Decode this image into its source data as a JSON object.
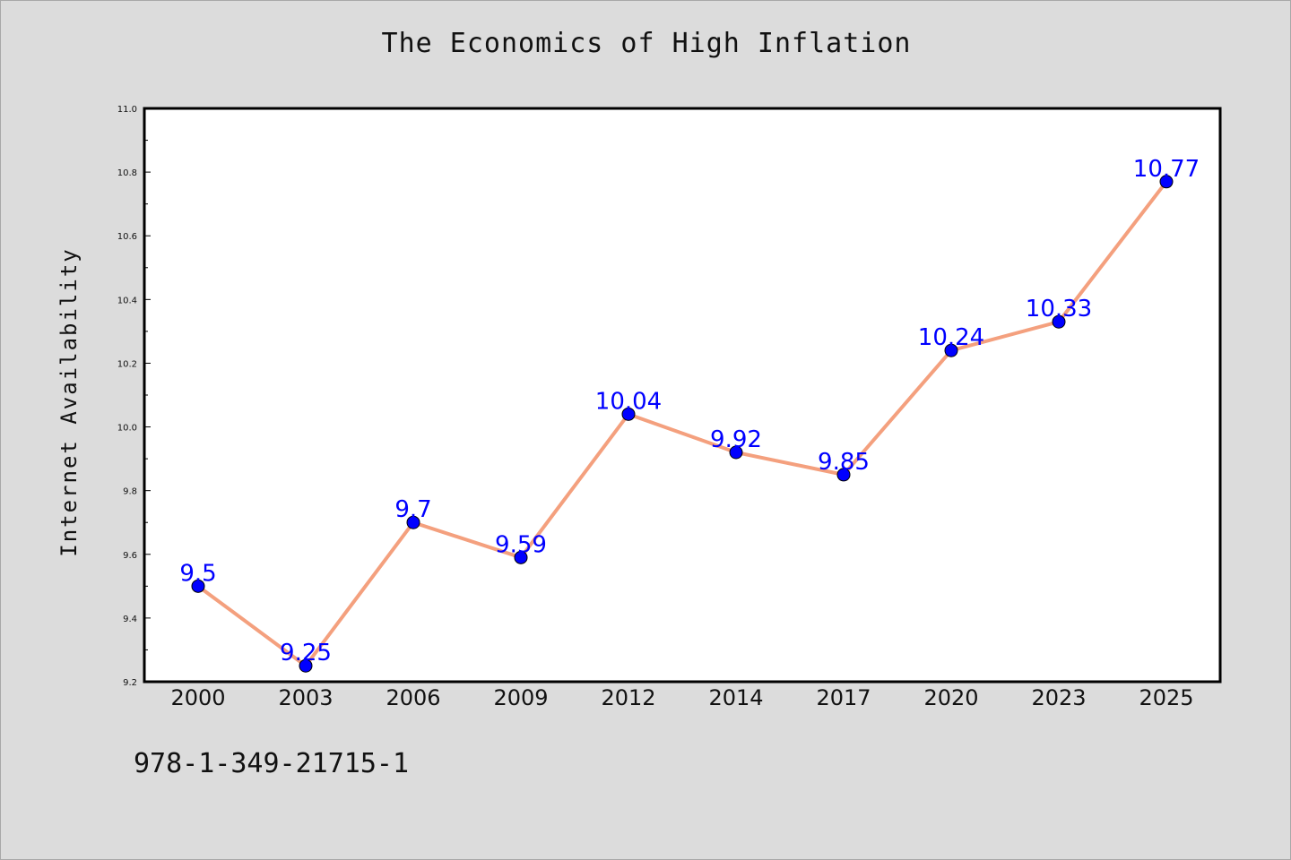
{
  "chart": {
    "title": "The Economics of High Inflation",
    "ylabel": "Internet Availability",
    "footer": "978-1-349-21715-1"
  },
  "colors": {
    "background": "#dcdcdc",
    "plot_area": "#ffffff",
    "line": "#f4a07e",
    "marker": "#0000ff",
    "data_label": "#0000ff"
  },
  "chart_data": {
    "type": "line",
    "title": "The Economics of High Inflation",
    "xlabel": "",
    "ylabel": "Internet Availability",
    "categories": [
      "2000",
      "2003",
      "2006",
      "2009",
      "2012",
      "2014",
      "2017",
      "2020",
      "2023",
      "2025"
    ],
    "series": [
      {
        "values": [
          9.5,
          9.25,
          9.7,
          9.59,
          10.04,
          9.92,
          9.85,
          10.24,
          10.33,
          10.77
        ]
      }
    ],
    "data_labels": [
      "9.5",
      "9.25",
      "9.7",
      "9.59",
      "10.04",
      "9.92",
      "9.85",
      "10.24",
      "10.33",
      "10.77"
    ],
    "ylim": [
      9.2,
      11.0
    ],
    "yticks": [
      "9.2",
      "9.4",
      "9.6",
      "9.8",
      "10.0",
      "10.2",
      "10.4",
      "10.6",
      "10.8",
      "11.0"
    ],
    "grid": false,
    "legend": "none"
  }
}
